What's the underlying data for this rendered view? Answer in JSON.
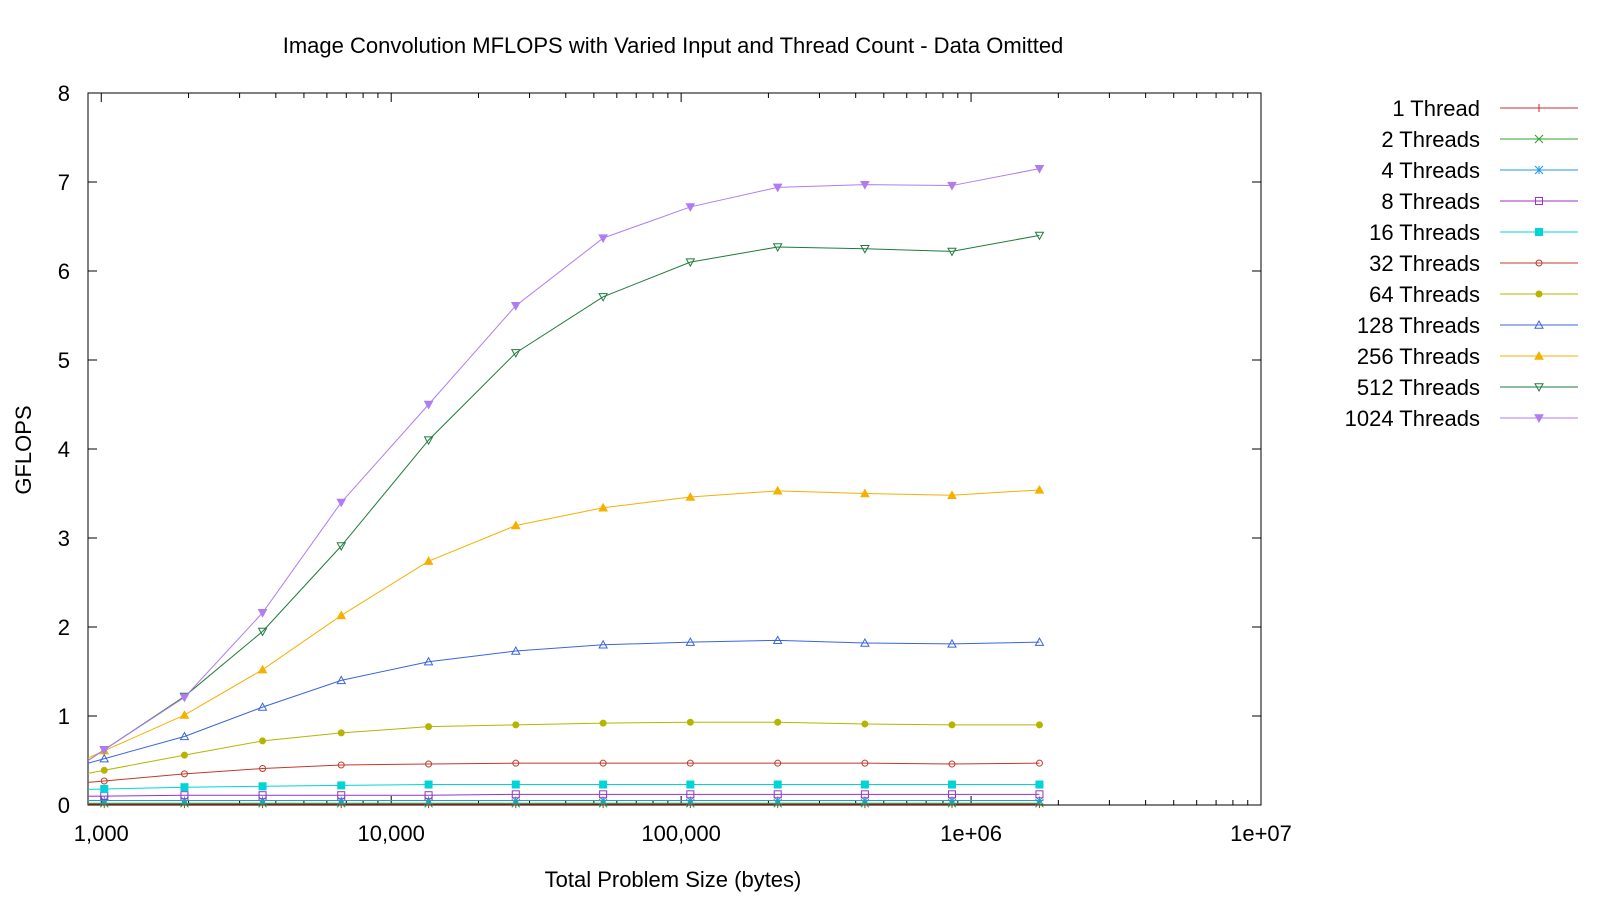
{
  "chart_data": {
    "type": "line",
    "title": "Image Convolution MFLOPS with Varied Input and Thread Count - Data Omitted",
    "xlabel": "Total Problem Size (bytes)",
    "ylabel": "GFLOPS",
    "x_scale": "log",
    "xlim": [
      900,
      10000000
    ],
    "ylim": [
      0,
      8
    ],
    "x_ticks": [
      {
        "value": 1000,
        "label": "1,000"
      },
      {
        "value": 10000,
        "label": "10,000"
      },
      {
        "value": 100000,
        "label": "100,000"
      },
      {
        "value": 1000000,
        "label": "1e+06"
      },
      {
        "value": 10000000,
        "label": "1e+07"
      }
    ],
    "y_ticks": [
      0,
      1,
      2,
      3,
      4,
      5,
      6,
      7,
      8
    ],
    "grid": false,
    "legend_position": "right",
    "x": [
      1024,
      1936,
      3600,
      6724,
      13456,
      26896,
      53824,
      107584,
      215296,
      430336,
      859329,
      1721344
    ],
    "series": [
      {
        "name": "1 Thread",
        "color": "#d62728",
        "marker": "plus",
        "values": [
          0.01,
          0.01,
          0.01,
          0.01,
          0.01,
          0.01,
          0.01,
          0.01,
          0.01,
          0.01,
          0.01,
          0.01
        ]
      },
      {
        "name": "2 Threads",
        "color": "#2ca02c",
        "marker": "cross",
        "values": [
          0.02,
          0.02,
          0.02,
          0.02,
          0.02,
          0.02,
          0.02,
          0.02,
          0.02,
          0.02,
          0.02,
          0.02
        ]
      },
      {
        "name": "4 Threads",
        "color": "#1f9be0",
        "marker": "star",
        "values": [
          0.05,
          0.05,
          0.05,
          0.05,
          0.05,
          0.05,
          0.05,
          0.05,
          0.05,
          0.05,
          0.05,
          0.05
        ]
      },
      {
        "name": "8 Threads",
        "color": "#9932cc",
        "marker": "square-open",
        "values": [
          0.1,
          0.11,
          0.11,
          0.11,
          0.11,
          0.12,
          0.12,
          0.12,
          0.12,
          0.12,
          0.12,
          0.12
        ]
      },
      {
        "name": "16 Threads",
        "color": "#00d5d5",
        "marker": "square-filled",
        "values": [
          0.18,
          0.2,
          0.21,
          0.22,
          0.23,
          0.23,
          0.23,
          0.23,
          0.23,
          0.23,
          0.23,
          0.23
        ]
      },
      {
        "name": "32 Threads",
        "color": "#c0392b",
        "marker": "circle-open",
        "values": [
          0.27,
          0.35,
          0.41,
          0.45,
          0.46,
          0.47,
          0.47,
          0.47,
          0.47,
          0.47,
          0.46,
          0.47
        ]
      },
      {
        "name": "64 Threads",
        "color": "#b5b500",
        "marker": "circle-filled",
        "values": [
          0.39,
          0.56,
          0.72,
          0.81,
          0.88,
          0.9,
          0.92,
          0.93,
          0.93,
          0.91,
          0.9,
          0.9
        ]
      },
      {
        "name": "128 Threads",
        "color": "#3b64dd",
        "marker": "triangle-open",
        "values": [
          0.52,
          0.77,
          1.1,
          1.4,
          1.61,
          1.73,
          1.8,
          1.83,
          1.85,
          1.82,
          1.81,
          1.83
        ]
      },
      {
        "name": "256 Threads",
        "color": "#f5b000",
        "marker": "triangle-filled",
        "values": [
          0.61,
          1.01,
          1.52,
          2.13,
          2.74,
          3.14,
          3.34,
          3.46,
          3.53,
          3.5,
          3.48,
          3.54
        ]
      },
      {
        "name": "512 Threads",
        "color": "#1e7b3c",
        "marker": "triangle-down-open",
        "values": [
          0.62,
          1.22,
          1.95,
          2.91,
          4.1,
          5.08,
          5.71,
          6.1,
          6.27,
          6.25,
          6.22,
          6.4
        ]
      },
      {
        "name": "1024 Threads",
        "color": "#b07cf0",
        "marker": "triangle-down-filled",
        "values": [
          0.62,
          1.21,
          2.16,
          3.4,
          4.5,
          5.61,
          6.37,
          6.72,
          6.94,
          6.97,
          6.96,
          7.15
        ]
      }
    ]
  }
}
